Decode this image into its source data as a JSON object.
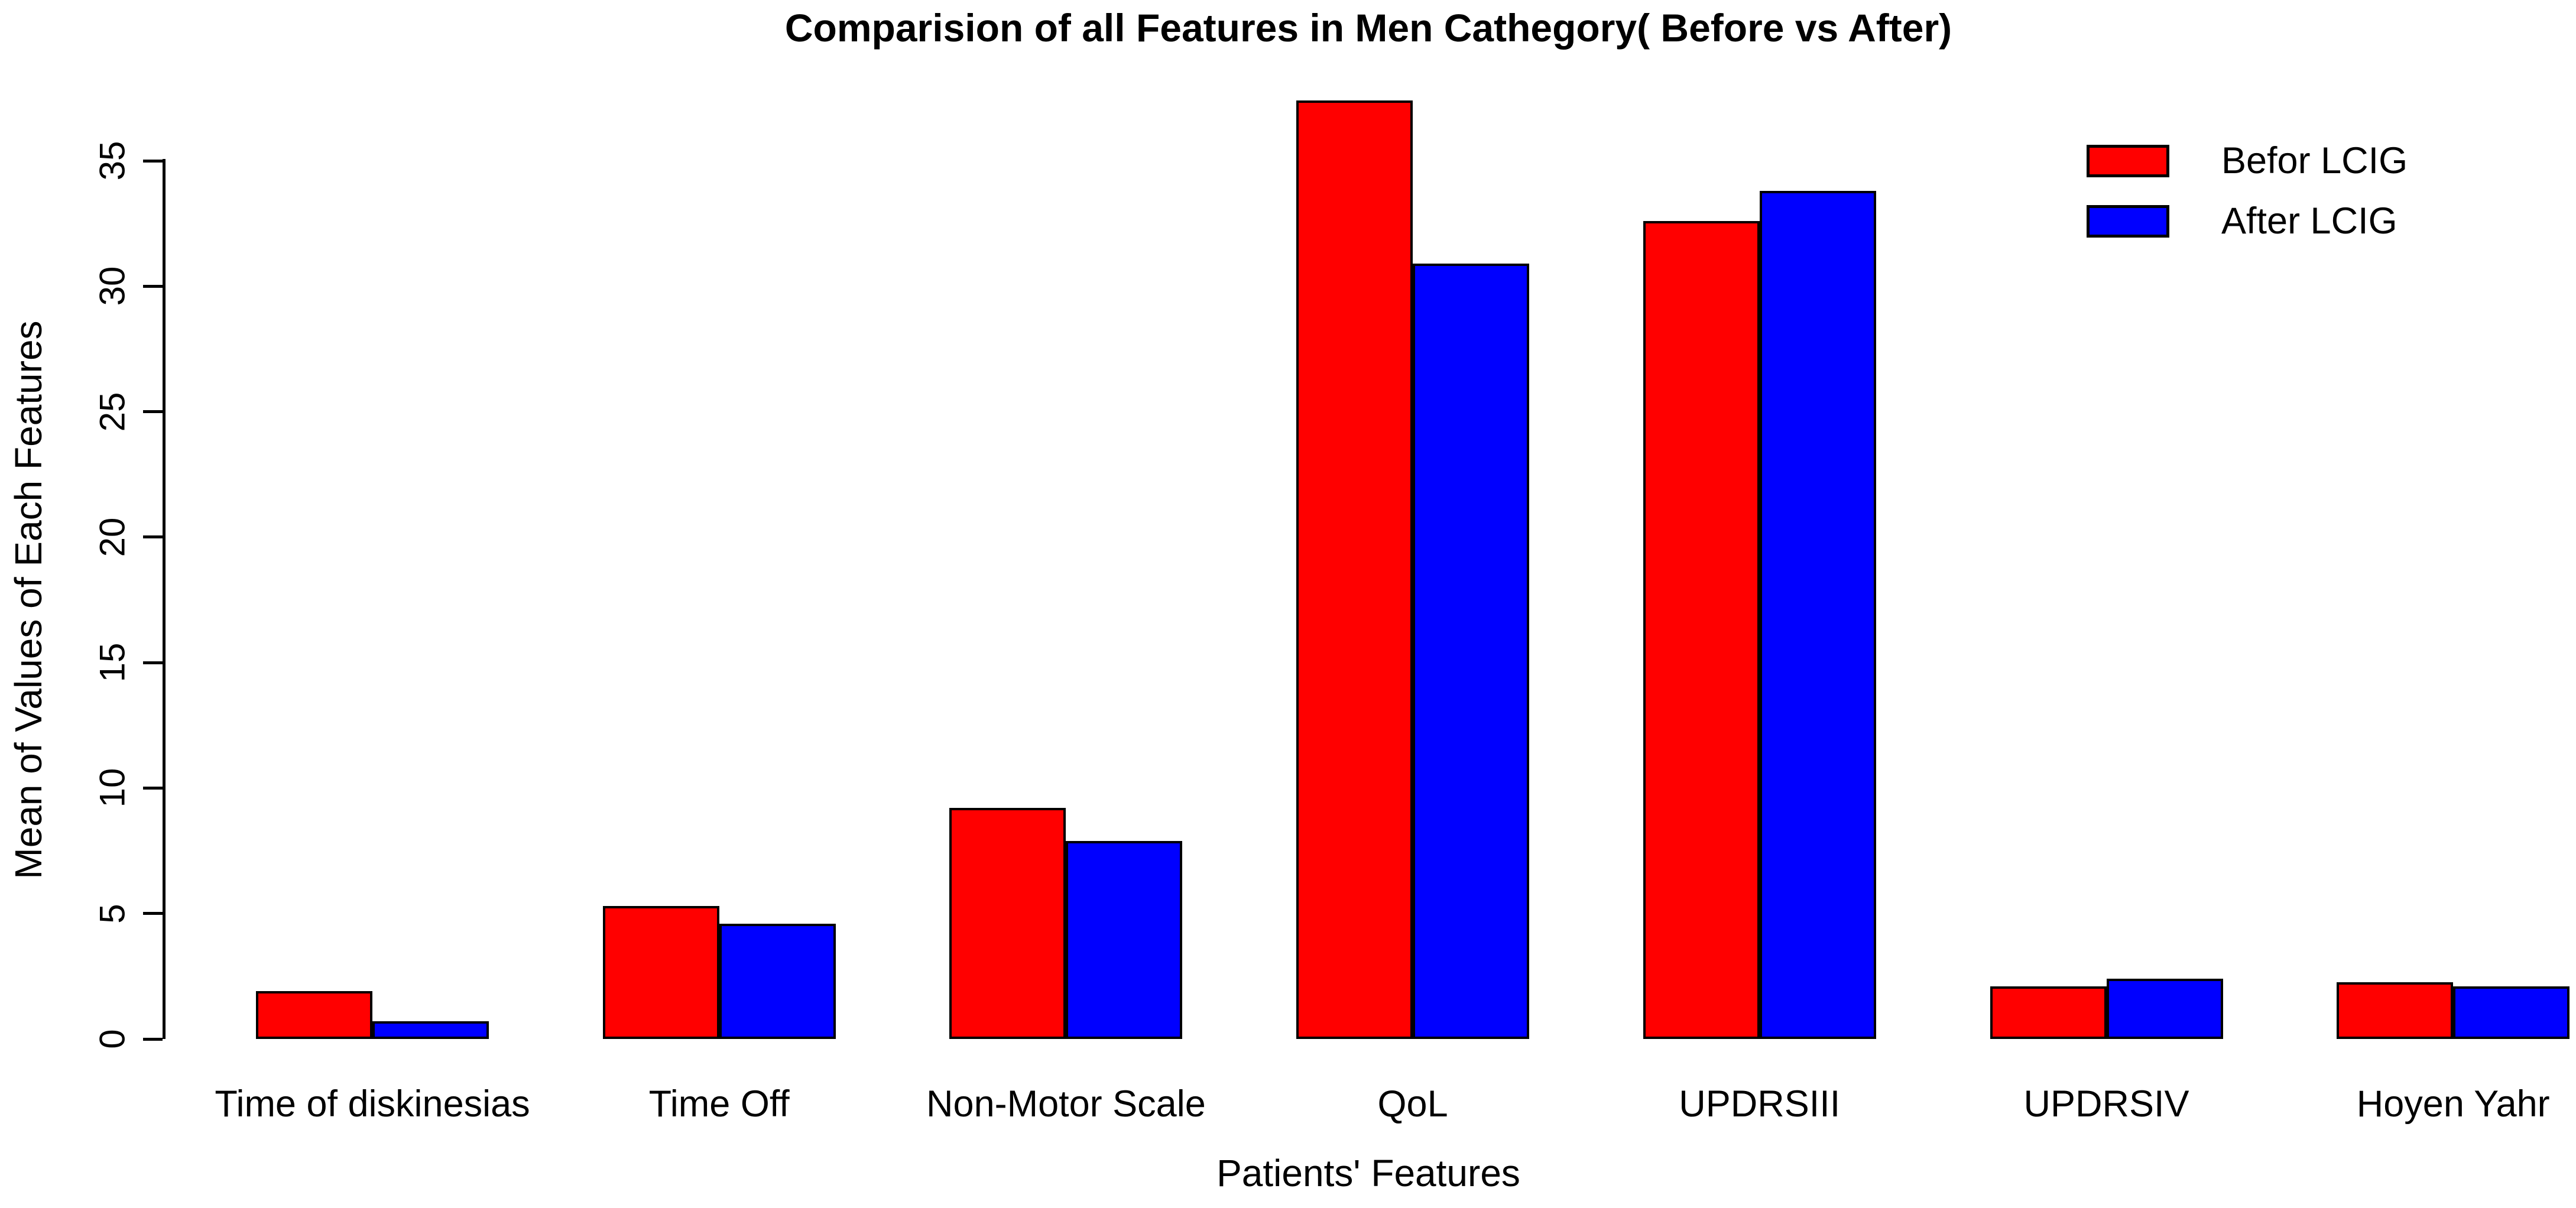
{
  "chart_data": {
    "type": "bar",
    "title": "Comparision of all Features in Men Cathegory( Before vs After)",
    "xlabel": "Patients' Features",
    "ylabel": "Mean of Values of Each Features",
    "categories": [
      "Time of diskinesias",
      "Time Off",
      "Non-Motor Scale",
      "QoL",
      "UPDRSIII",
      "UPDRSIV",
      "Hoyen Yahr"
    ],
    "series": [
      {
        "name": "Befor LCIG",
        "color": "#FF0000",
        "values": [
          1.9,
          5.3,
          9.2,
          37.4,
          32.6,
          2.1,
          2.25
        ]
      },
      {
        "name": "After LCIG",
        "color": "#0000FF",
        "values": [
          0.7,
          4.6,
          7.9,
          30.9,
          33.8,
          2.4,
          2.1
        ]
      }
    ],
    "y_ticks": [
      0,
      5,
      10,
      15,
      20,
      25,
      30,
      35
    ],
    "ylim": [
      0,
      38.3
    ],
    "grid": false,
    "legend_position": "top-right",
    "bar_border_color": "#000000",
    "background_color": "#FFFFFF",
    "text_color": "#000000"
  }
}
